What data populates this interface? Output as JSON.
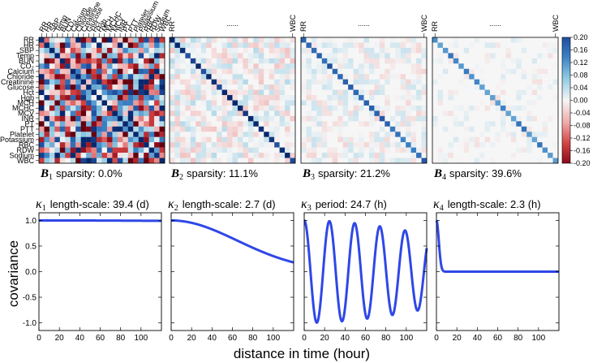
{
  "colors": {
    "positive": "#1f4e9e",
    "negative": "#8b0a1a",
    "neutral": "#f6f6f6",
    "curve": "#2f47e8"
  },
  "chart_data": [
    {
      "type": "heatmap",
      "variables": [
        "RR",
        "HR",
        "SBP",
        "Temp",
        "BUN",
        "CO2",
        "Calcium",
        "Chloride",
        "Creatinine",
        "Glucose",
        "Hct",
        "Hgb",
        "MCH",
        "MCHC",
        "MCV",
        "INR",
        "PT",
        "PTT",
        "Platelet",
        "Potassium",
        "RBC",
        "RDW",
        "Sodium",
        "WBC"
      ],
      "row_labels": [
        "RR",
        "HR",
        "SBP",
        "Temp",
        "BUN",
        "CO₂",
        "Calcium",
        "Chloride",
        "Creatinine",
        "Glucose",
        "Hct",
        "Hgb",
        "MCH",
        "MCHC",
        "MCV",
        "INR",
        "PT",
        "PTT",
        "Platelet",
        "Potassium",
        "RBC",
        "RDW",
        "Sodium",
        "WBC"
      ],
      "col_labels_first": [
        "RR",
        "HR",
        "SBP",
        "Temp",
        "BUN",
        "CO₂",
        "Calcium",
        "Chloride",
        "Creatinine",
        "Glucose",
        "Hct",
        "Hgb",
        "MCH",
        "MCHC",
        "MCV",
        "INR",
        "PT",
        "PTT",
        "Platelet",
        "Potassium",
        "RBC",
        "RDW",
        "Sodium",
        "WBC"
      ],
      "col_labels_other": {
        "first": "RR",
        "middle": "......",
        "last": "WBC"
      },
      "panels": [
        {
          "symbol": "B",
          "index": "1",
          "caption": "sparsity: 0.0%",
          "sparsity": 0.0
        },
        {
          "symbol": "B",
          "index": "2",
          "caption": "sparsity: 11.1%",
          "sparsity": 0.111
        },
        {
          "symbol": "B",
          "index": "3",
          "caption": "sparsity: 21.2%",
          "sparsity": 0.212
        },
        {
          "symbol": "B",
          "index": "4",
          "caption": "sparsity: 39.6%",
          "sparsity": 0.396
        }
      ],
      "colorbar": {
        "min": -0.2,
        "max": 0.2,
        "ticks": [
          "0.20",
          "0.16",
          "0.12",
          "0.08",
          "0.04",
          "0.00",
          "-0.04",
          "-0.08",
          "-0.12",
          "-0.16",
          "-0.20"
        ]
      }
    },
    {
      "type": "line",
      "xlabel": "distance in time (hour)",
      "ylabel": "covariance",
      "xlim": [
        0,
        120
      ],
      "ylim": [
        -1.15,
        1.15
      ],
      "xticks": [
        0,
        20,
        40,
        60,
        80,
        100
      ],
      "yticks": [
        1.0,
        0.5,
        0.0,
        -0.5,
        -1.0
      ],
      "ytick_labels": [
        "1.0",
        "0.5",
        "0.0",
        "-0.5",
        "-1.0"
      ],
      "panels": [
        {
          "symbol": "κ",
          "index": "1",
          "caption": "length-scale: 39.4 (d)",
          "kernel": "rbf",
          "length_scale_hours": 945.6
        },
        {
          "symbol": "κ",
          "index": "2",
          "caption": "length-scale: 2.7 (d)",
          "kernel": "rbf",
          "length_scale_hours": 64.8
        },
        {
          "symbol": "κ",
          "index": "3",
          "caption": "period: 24.7 (h)",
          "kernel": "periodic-decay",
          "period_hours": 24.7,
          "decay_hours": 150
        },
        {
          "symbol": "κ",
          "index": "4",
          "caption": "length-scale: 2.3 (h)",
          "kernel": "rbf",
          "length_scale_hours": 2.3
        }
      ]
    }
  ]
}
